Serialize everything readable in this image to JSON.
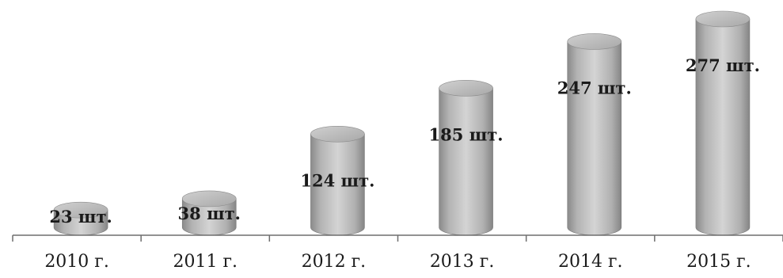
{
  "chart_data": {
    "type": "bar",
    "bar_style": "3d-cylinder",
    "categories": [
      "2010 г.",
      "2011 г.",
      "2012 г.",
      "2013 г.",
      "2014 г.",
      "2015 г."
    ],
    "values": [
      23,
      38,
      124,
      185,
      247,
      277
    ],
    "value_labels": [
      "23 шт.",
      "38 шт.",
      "124 шт.",
      "185 шт.",
      "247 шт.",
      "277 шт."
    ],
    "title": "",
    "xlabel": "",
    "ylabel": "",
    "ylim": [
      0,
      300
    ],
    "grid": false,
    "legend": "none",
    "colors": {
      "bar": "#bdbdbd",
      "bar_top": "#d9d9d9",
      "axis": "#6e6e6e",
      "text": "#1a1a1a"
    }
  }
}
